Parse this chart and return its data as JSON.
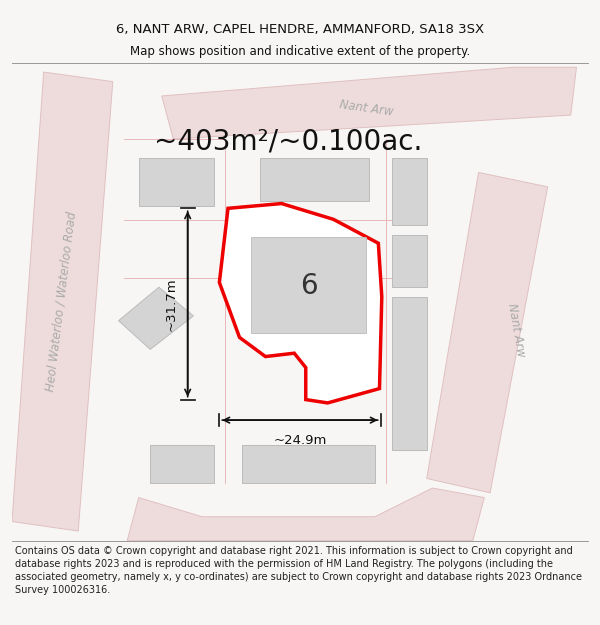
{
  "title_line1": "6, NANT ARW, CAPEL HENDRE, AMMANFORD, SA18 3SX",
  "title_line2": "Map shows position and indicative extent of the property.",
  "area_label": "~403m²/~0.100ac.",
  "number_label": "6",
  "dim_vertical": "~31.7m",
  "dim_horizontal": "~24.9m",
  "footer_text": "Contains OS data © Crown copyright and database right 2021. This information is subject to Crown copyright and database rights 2023 and is reproduced with the permission of HM Land Registry. The polygons (including the associated geometry, namely x, y co-ordinates) are subject to Crown copyright and database rights 2023 Ordnance Survey 100026316.",
  "bg_color": "#f7f6f4",
  "map_bg": "#f0eeeb",
  "road_fill": "#eedcdc",
  "road_edge": "#e0c0c0",
  "building_fill": "#d4d4d4",
  "building_edge": "#bbbbbb",
  "plot_fill": "#ffffff",
  "plot_edge": "#ee0000",
  "dim_color": "#111111",
  "street_color": "#aaaaaa",
  "title_fs": 9.5,
  "sub_fs": 8.5,
  "area_fs": 20,
  "num_fs": 20,
  "dim_fs": 9.5,
  "street_fs": 8.5,
  "footer_fs": 7.0
}
